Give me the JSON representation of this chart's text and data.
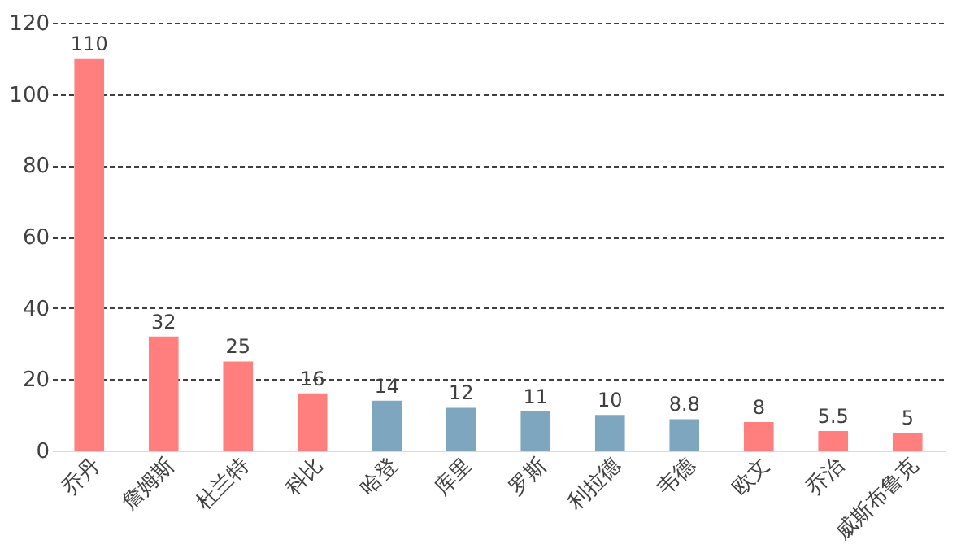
{
  "chart_data": {
    "type": "bar",
    "categories": [
      "乔丹",
      "詹姆斯",
      "杜兰特",
      "科比",
      "哈登",
      "库里",
      "罗斯",
      "利拉德",
      "韦德",
      "欧文",
      "乔治",
      "威斯布鲁克"
    ],
    "values": [
      110,
      32,
      25,
      16,
      14,
      12,
      11,
      10,
      8.8,
      8,
      5.5,
      5
    ],
    "colors": [
      "#ff7f7f",
      "#ff7f7f",
      "#ff7f7f",
      "#ff7f7f",
      "#7fa6bf",
      "#7fa6bf",
      "#7fa6bf",
      "#7fa6bf",
      "#7fa6bf",
      "#ff7f7f",
      "#ff7f7f",
      "#ff7f7f"
    ],
    "ylim": [
      0,
      120
    ],
    "yticks": [
      0,
      20,
      40,
      60,
      80,
      100,
      120
    ],
    "grid": "y",
    "data_labels": true
  }
}
